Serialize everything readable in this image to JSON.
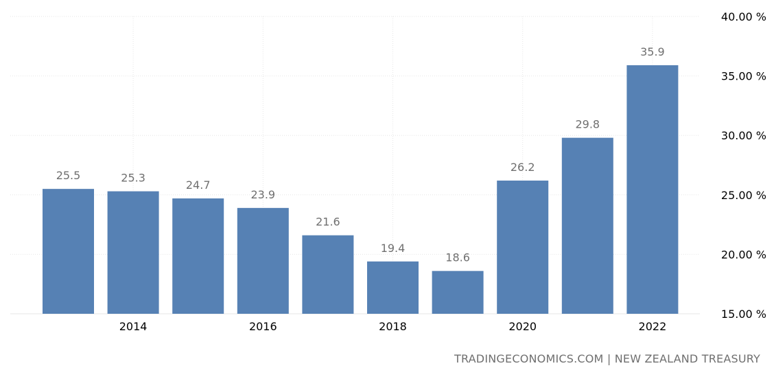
{
  "chart_data": {
    "type": "bar",
    "categories": [
      "2013",
      "2014",
      "2015",
      "2016",
      "2017",
      "2018",
      "2019",
      "2020",
      "2021",
      "2022"
    ],
    "values": [
      25.5,
      25.3,
      24.7,
      23.9,
      21.6,
      19.4,
      18.6,
      26.2,
      29.8,
      35.9
    ],
    "data_labels": [
      "25.5",
      "25.3",
      "24.7",
      "23.9",
      "21.6",
      "19.4",
      "18.6",
      "26.2",
      "29.8",
      "35.9"
    ],
    "x_tick_labels": [
      "2014",
      "2016",
      "2018",
      "2020",
      "2022"
    ],
    "y_tick_labels": [
      "15.00 %",
      "20.00 %",
      "25.00 %",
      "30.00 %",
      "35.00 %",
      "40.00 %"
    ],
    "ylim": [
      15,
      40
    ],
    "y_axis_side": "right",
    "grid": true,
    "bar_color": "#5681b4"
  },
  "credit": "TRADINGECONOMICS.COM | NEW ZEALAND TREASURY"
}
